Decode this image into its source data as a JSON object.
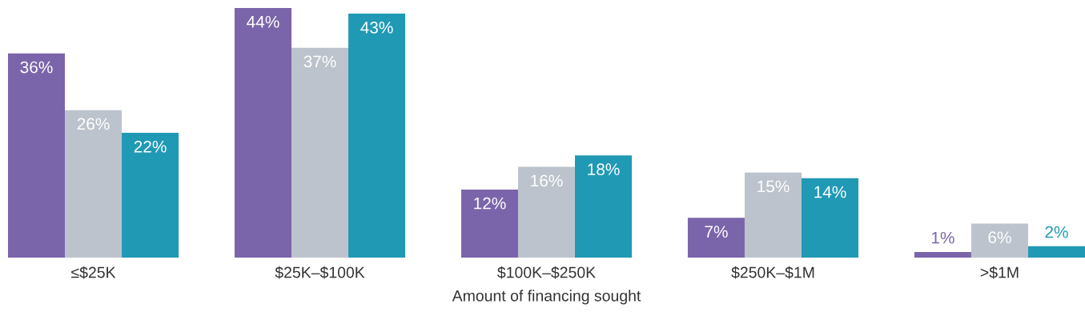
{
  "chart_data": {
    "type": "bar",
    "xlabel": "Amount of financing sought",
    "categories": [
      "≤$25K",
      "$25K–$100K",
      "$100K–$250K",
      "$250K–$1M",
      ">$1M"
    ],
    "series": [
      {
        "color": "#7b65aa",
        "values": [
          36,
          44,
          12,
          7,
          1
        ],
        "value_labels": [
          "36%",
          "44%",
          "12%",
          "7%",
          "1%"
        ]
      },
      {
        "color": "#bcc3cc",
        "values": [
          26,
          37,
          16,
          15,
          6
        ],
        "value_labels": [
          "26%",
          "37%",
          "16%",
          "15%",
          "6%"
        ]
      },
      {
        "color": "#2099b5",
        "values": [
          22,
          43,
          18,
          14,
          2
        ],
        "value_labels": [
          "22%",
          "43%",
          "18%",
          "14%",
          "2%"
        ]
      }
    ],
    "grid": false
  }
}
